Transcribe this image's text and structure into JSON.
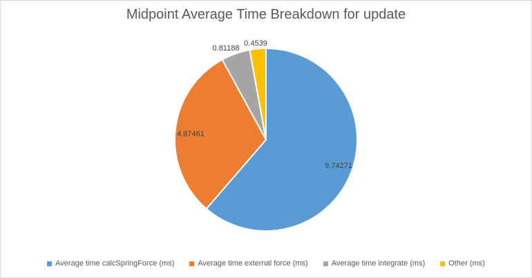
{
  "chart_data": {
    "type": "pie",
    "title": "Midpoint Average Time Breakdown for update",
    "series": [
      {
        "name": "Average time calcSpringForce (ms)",
        "value": 9.74271,
        "label": "9.74271",
        "color": "#5b9bd5"
      },
      {
        "name": "Average time external force (ms)",
        "value": 4.87461,
        "label": "4.87461",
        "color": "#ed7d31"
      },
      {
        "name": "Average time integrate (ms)",
        "value": 0.81188,
        "label": "0.81188",
        "color": "#a5a5a5"
      },
      {
        "name": "Other (ms)",
        "value": 0.4539,
        "label": "0.4539",
        "color": "#ffc000"
      }
    ],
    "legend_position": "bottom"
  }
}
